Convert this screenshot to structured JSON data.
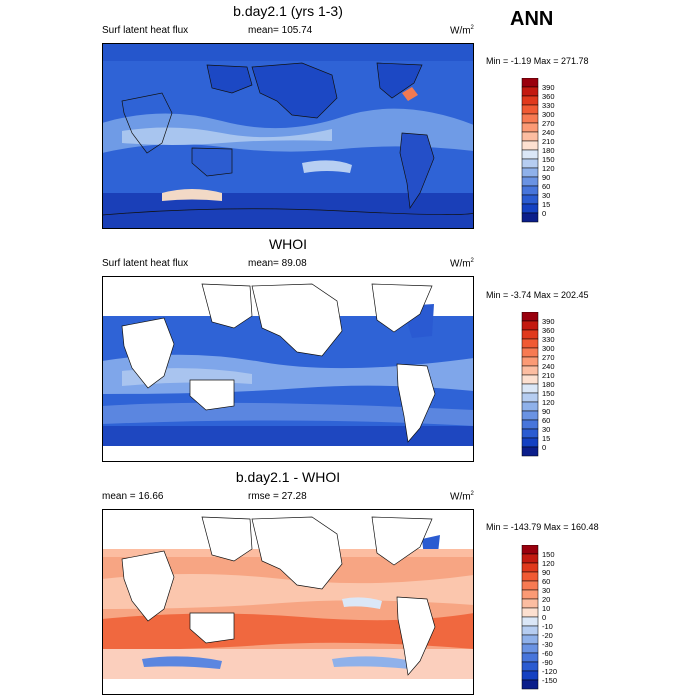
{
  "ann_label": "ANN",
  "panels": [
    {
      "title": "b.day2.1 (yrs 1-3)",
      "left_label": "Surf latent heat flux",
      "center_label": "mean= 105.74",
      "units_base": "W/m",
      "units_exp": "2",
      "minmax": "Min =  -1.19 Max = 271.78",
      "colorbar": {
        "labels": [
          "390",
          "360",
          "330",
          "300",
          "270",
          "240",
          "210",
          "180",
          "150",
          "120",
          "90",
          "60",
          "30",
          "15",
          "0"
        ],
        "colors": [
          "#99000d",
          "#c31a10",
          "#e0391c",
          "#f05a33",
          "#f77a52",
          "#fb9a75",
          "#fcbda1",
          "#fde0d0",
          "#dbe7f7",
          "#b6cdf1",
          "#8fb1ea",
          "#6a93e3",
          "#4775db",
          "#2a5bd1",
          "#1441c2",
          "#0b1e8a"
        ]
      }
    },
    {
      "title": "WHOI",
      "left_label": "Surf latent heat flux",
      "center_label": "mean=  89.08",
      "units_base": "W/m",
      "units_exp": "2",
      "minmax": "Min =  -3.74 Max = 202.45",
      "colorbar": {
        "labels": [
          "390",
          "360",
          "330",
          "300",
          "270",
          "240",
          "210",
          "180",
          "150",
          "120",
          "90",
          "60",
          "30",
          "15",
          "0"
        ],
        "colors": [
          "#99000d",
          "#c31a10",
          "#e0391c",
          "#f05a33",
          "#f77a52",
          "#fb9a75",
          "#fcbda1",
          "#fde0d0",
          "#dbe7f7",
          "#b6cdf1",
          "#8fb1ea",
          "#6a93e3",
          "#4775db",
          "#2a5bd1",
          "#1441c2",
          "#0b1e8a"
        ]
      }
    },
    {
      "title": "b.day2.1 - WHOI",
      "left_label": "mean =  16.66",
      "center_label": "rmse =  27.28",
      "units_base": "W/m",
      "units_exp": "2",
      "minmax": "Min = -143.79 Max = 160.48",
      "colorbar": {
        "labels": [
          "150",
          "120",
          "90",
          "60",
          "30",
          "20",
          "10",
          "0",
          "-10",
          "-20",
          "-30",
          "-60",
          "-90",
          "-120",
          "-150"
        ],
        "colors": [
          "#99000d",
          "#c31a10",
          "#e0391c",
          "#f05a33",
          "#f77a52",
          "#fb9a75",
          "#fcbda1",
          "#fde0d0",
          "#dbe7f7",
          "#b6cdf1",
          "#8fb1ea",
          "#6a93e3",
          "#4775db",
          "#2a5bd1",
          "#1441c2",
          "#0b1e8a"
        ]
      }
    }
  ]
}
